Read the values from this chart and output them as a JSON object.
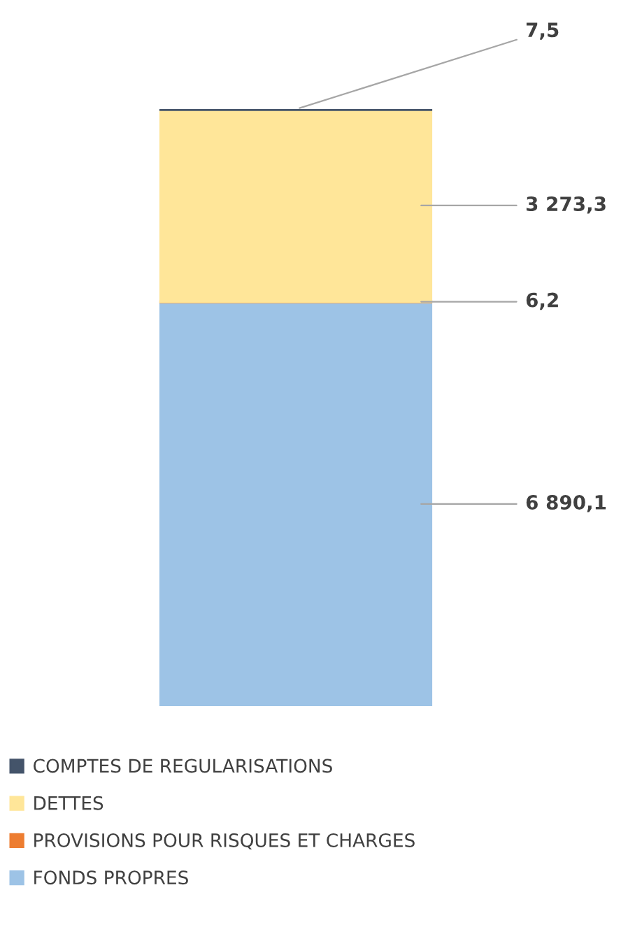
{
  "chart_data": {
    "type": "bar",
    "stacked": true,
    "categories": [
      null
    ],
    "series": [
      {
        "name": "FONDS PROPRES",
        "color": "#9dc3e6",
        "values": [
          6890.1
        ],
        "value_labels": [
          "6 890,1"
        ]
      },
      {
        "name": "PROVISIONS POUR RISQUES ET CHARGES",
        "color": "#ed7d31",
        "values": [
          6.2
        ],
        "value_labels": [
          "6,2"
        ]
      },
      {
        "name": "DETTES",
        "color": "#ffe699",
        "values": [
          3273.3
        ],
        "value_labels": [
          "3 273,3"
        ]
      },
      {
        "name": "COMPTES DE REGULARISATIONS",
        "color": "#44546a",
        "values": [
          7.5
        ],
        "value_labels": [
          "7,5"
        ]
      }
    ],
    "legend": "bottom"
  }
}
